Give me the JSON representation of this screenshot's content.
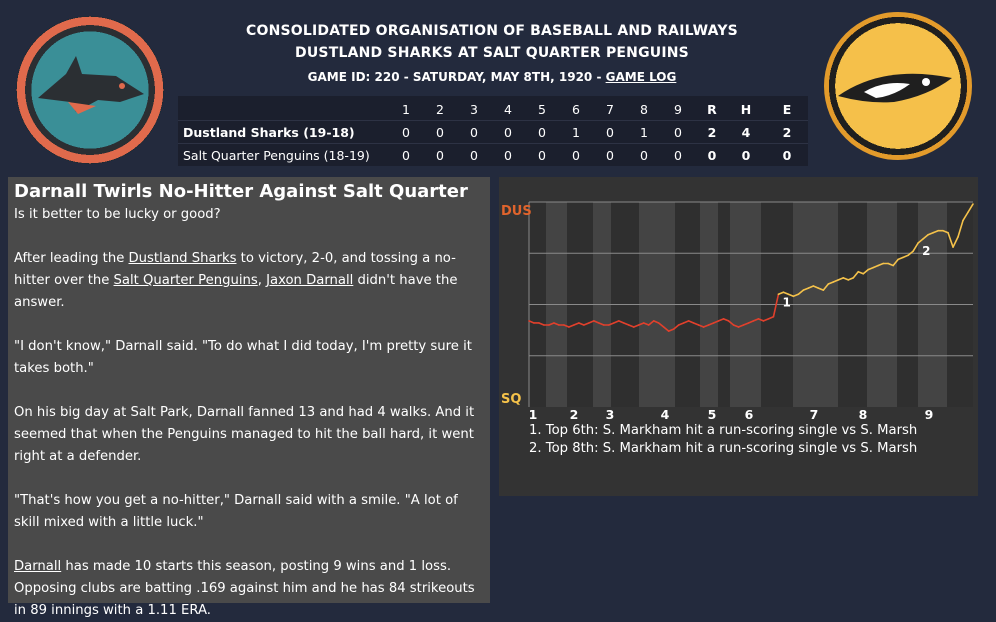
{
  "header": {
    "league": "CONSOLIDATED ORGANISATION OF BASEBALL AND RAILWAYS",
    "matchup": "DUSTLAND SHARKS AT SALT QUARTER PENGUINS",
    "game_info": "GAME ID: 220 - SATURDAY, MAY 8TH, 1920 - ",
    "game_log_link": "GAME LOG"
  },
  "logos": {
    "away": "shark-logo",
    "home": "penguin-logo"
  },
  "linescore": {
    "columns": [
      "1",
      "2",
      "3",
      "4",
      "5",
      "6",
      "7",
      "8",
      "9",
      "R",
      "H",
      "E"
    ],
    "teams": [
      {
        "name": "Dustland Sharks (19-18)",
        "winner": true,
        "cells": [
          "0",
          "0",
          "0",
          "0",
          "0",
          "1",
          "0",
          "1",
          "0",
          "2",
          "4",
          "2"
        ]
      },
      {
        "name": "Salt Quarter Penguins (18-19)",
        "winner": false,
        "cells": [
          "0",
          "0",
          "0",
          "0",
          "0",
          "0",
          "0",
          "0",
          "0",
          "0",
          "0",
          "0"
        ]
      }
    ]
  },
  "article": {
    "title": "Darnall Twirls No-Hitter Against Salt Quarter",
    "p1": "Is it better to be lucky or good?",
    "p2_a": "After leading the ",
    "p2_link1": "Dustland Sharks",
    "p2_b": " to victory, 2-0, and tossing a no-hitter over the ",
    "p2_link2": "Salt Quarter Penguins",
    "p2_c": ", ",
    "p2_link3": "Jaxon Darnall",
    "p2_d": " didn't have the answer.",
    "p3": "\"I don't know,\" Darnall said. \"To do what I did today, I'm pretty sure it takes both.\"",
    "p4": "On his big day at Salt Park, Darnall fanned 13 and had 4 walks. And it seemed that when the Penguins managed to hit the ball hard, it went right at a defender.",
    "p5": "\"That's how you get a no-hitter,\" Darnall said with a smile. \"A lot of skill mixed with a little luck.\"",
    "p6_link": "Darnall",
    "p6": " has made 10 starts this season, posting 9 wins and 1 loss. Opposing clubs are batting .169 against him and he has 84 strikeouts in 89 innings with a 1.11 ERA."
  },
  "chart_data": {
    "type": "line",
    "top_label": "DUS",
    "bottom_label": "SQ",
    "inning_labels": [
      "1",
      "2",
      "3",
      "4",
      "5",
      "6",
      "7",
      "8",
      "9"
    ],
    "ylim": [
      0,
      100
    ],
    "grid": true,
    "values": [
      42,
      41,
      41,
      40,
      40,
      41,
      40,
      40,
      39,
      40,
      41,
      40,
      41,
      42,
      41,
      40,
      40,
      41,
      42,
      41,
      40,
      39,
      40,
      41,
      40,
      42,
      41,
      39,
      37,
      38,
      40,
      41,
      42,
      41,
      40,
      39,
      40,
      41,
      42,
      43,
      42,
      40,
      39,
      40,
      41,
      42,
      43,
      42,
      43,
      44,
      55,
      56,
      55,
      54,
      55,
      57,
      58,
      59,
      58,
      57,
      60,
      61,
      62,
      63,
      62,
      63,
      66,
      65,
      67,
      68,
      69,
      70,
      70,
      69,
      72,
      73,
      74,
      76,
      80,
      82,
      84,
      85,
      86,
      86,
      85,
      78,
      83,
      91,
      95,
      99
    ],
    "markers": [
      {
        "label": "1",
        "index": 50
      },
      {
        "label": "2",
        "index": 78
      }
    ],
    "colors": {
      "line_low": "#e0402c",
      "line_high": "#f5c24a",
      "accent": "#e0642c"
    },
    "notes": [
      "1. Top 6th: S. Markham hit a run-scoring single vs S. Marsh",
      "2. Top 8th: S. Markham hit a run-scoring single vs S. Marsh"
    ]
  }
}
